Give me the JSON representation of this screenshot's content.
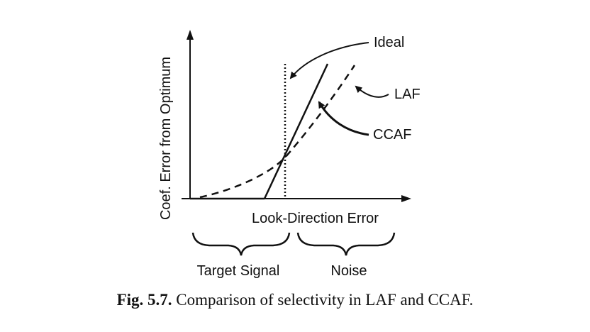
{
  "diagram": {
    "y_axis_label": "Coef. Error from Optimum",
    "x_axis_label": "Look-Direction Error",
    "curve_labels": {
      "ideal": "Ideal",
      "laf": "LAF",
      "ccaf": "CCAF"
    },
    "regions": {
      "left": "Target Signal",
      "right": "Noise"
    }
  },
  "caption": {
    "label": "Fig. 5.7.",
    "text": "Comparison of selectivity in LAF and CCAF."
  }
}
